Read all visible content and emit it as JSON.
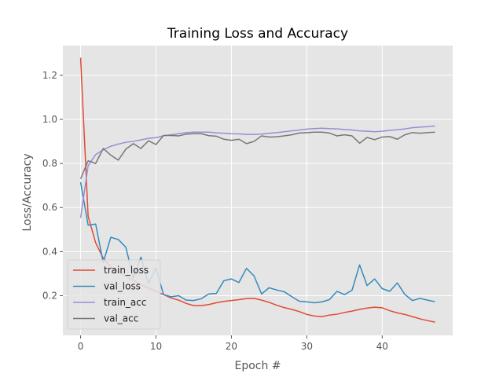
{
  "chart_data": {
    "type": "line",
    "title": "Training Loss and Accuracy",
    "xlabel": "Epoch #",
    "ylabel": "Loss/Accuracy",
    "xlim": [
      -2.35,
      49.35
    ],
    "ylim": [
      0.02,
      1.335
    ],
    "xticks": [
      0,
      10,
      20,
      30,
      40
    ],
    "yticks": [
      0.2,
      0.4,
      0.6,
      0.8,
      1.0,
      1.2
    ],
    "ytick_labels": [
      "0.2",
      "0.4",
      "0.6",
      "0.8",
      "1.0",
      "1.2"
    ],
    "grid": true,
    "legend_position": "lower-left",
    "x": [
      0,
      1,
      2,
      3,
      4,
      5,
      6,
      7,
      8,
      9,
      10,
      11,
      12,
      13,
      14,
      15,
      16,
      17,
      18,
      19,
      20,
      21,
      22,
      23,
      24,
      25,
      26,
      27,
      28,
      29,
      30,
      31,
      32,
      33,
      34,
      35,
      36,
      37,
      38,
      39,
      40,
      41,
      42,
      43,
      44,
      45,
      46,
      47
    ],
    "series": [
      {
        "name": "train_loss",
        "color": "#E24A33",
        "values": [
          1.28,
          0.56,
          0.44,
          0.37,
          0.33,
          0.31,
          0.29,
          0.27,
          0.25,
          0.235,
          0.22,
          0.205,
          0.19,
          0.18,
          0.165,
          0.155,
          0.155,
          0.16,
          0.168,
          0.174,
          0.178,
          0.182,
          0.187,
          0.188,
          0.18,
          0.17,
          0.157,
          0.146,
          0.138,
          0.128,
          0.115,
          0.108,
          0.105,
          0.112,
          0.116,
          0.124,
          0.13,
          0.138,
          0.144,
          0.148,
          0.145,
          0.132,
          0.122,
          0.115,
          0.105,
          0.095,
          0.087,
          0.08
        ]
      },
      {
        "name": "val_loss",
        "color": "#348ABD",
        "values": [
          0.715,
          0.52,
          0.525,
          0.35,
          0.465,
          0.455,
          0.42,
          0.28,
          0.375,
          0.255,
          0.325,
          0.205,
          0.195,
          0.2,
          0.18,
          0.178,
          0.186,
          0.208,
          0.21,
          0.268,
          0.276,
          0.26,
          0.324,
          0.29,
          0.208,
          0.236,
          0.226,
          0.218,
          0.196,
          0.175,
          0.172,
          0.168,
          0.172,
          0.182,
          0.22,
          0.205,
          0.225,
          0.34,
          0.246,
          0.276,
          0.232,
          0.22,
          0.258,
          0.206,
          0.178,
          0.188,
          0.18,
          0.173
        ]
      },
      {
        "name": "train_acc",
        "color": "#988ED5",
        "values": [
          0.553,
          0.79,
          0.84,
          0.862,
          0.878,
          0.888,
          0.896,
          0.9,
          0.907,
          0.914,
          0.917,
          0.926,
          0.93,
          0.935,
          0.94,
          0.942,
          0.942,
          0.942,
          0.939,
          0.937,
          0.935,
          0.934,
          0.932,
          0.932,
          0.933,
          0.937,
          0.94,
          0.944,
          0.948,
          0.952,
          0.956,
          0.958,
          0.96,
          0.958,
          0.957,
          0.954,
          0.952,
          0.948,
          0.946,
          0.944,
          0.946,
          0.95,
          0.953,
          0.957,
          0.962,
          0.965,
          0.967,
          0.97
        ]
      },
      {
        "name": "val_acc",
        "color": "#777777",
        "values": [
          0.73,
          0.812,
          0.8,
          0.868,
          0.838,
          0.815,
          0.865,
          0.89,
          0.868,
          0.903,
          0.886,
          0.927,
          0.927,
          0.925,
          0.933,
          0.935,
          0.935,
          0.926,
          0.924,
          0.91,
          0.905,
          0.91,
          0.89,
          0.9,
          0.925,
          0.92,
          0.921,
          0.925,
          0.93,
          0.938,
          0.94,
          0.942,
          0.942,
          0.938,
          0.925,
          0.93,
          0.925,
          0.892,
          0.918,
          0.908,
          0.92,
          0.922,
          0.91,
          0.93,
          0.94,
          0.937,
          0.94,
          0.942
        ]
      }
    ]
  }
}
